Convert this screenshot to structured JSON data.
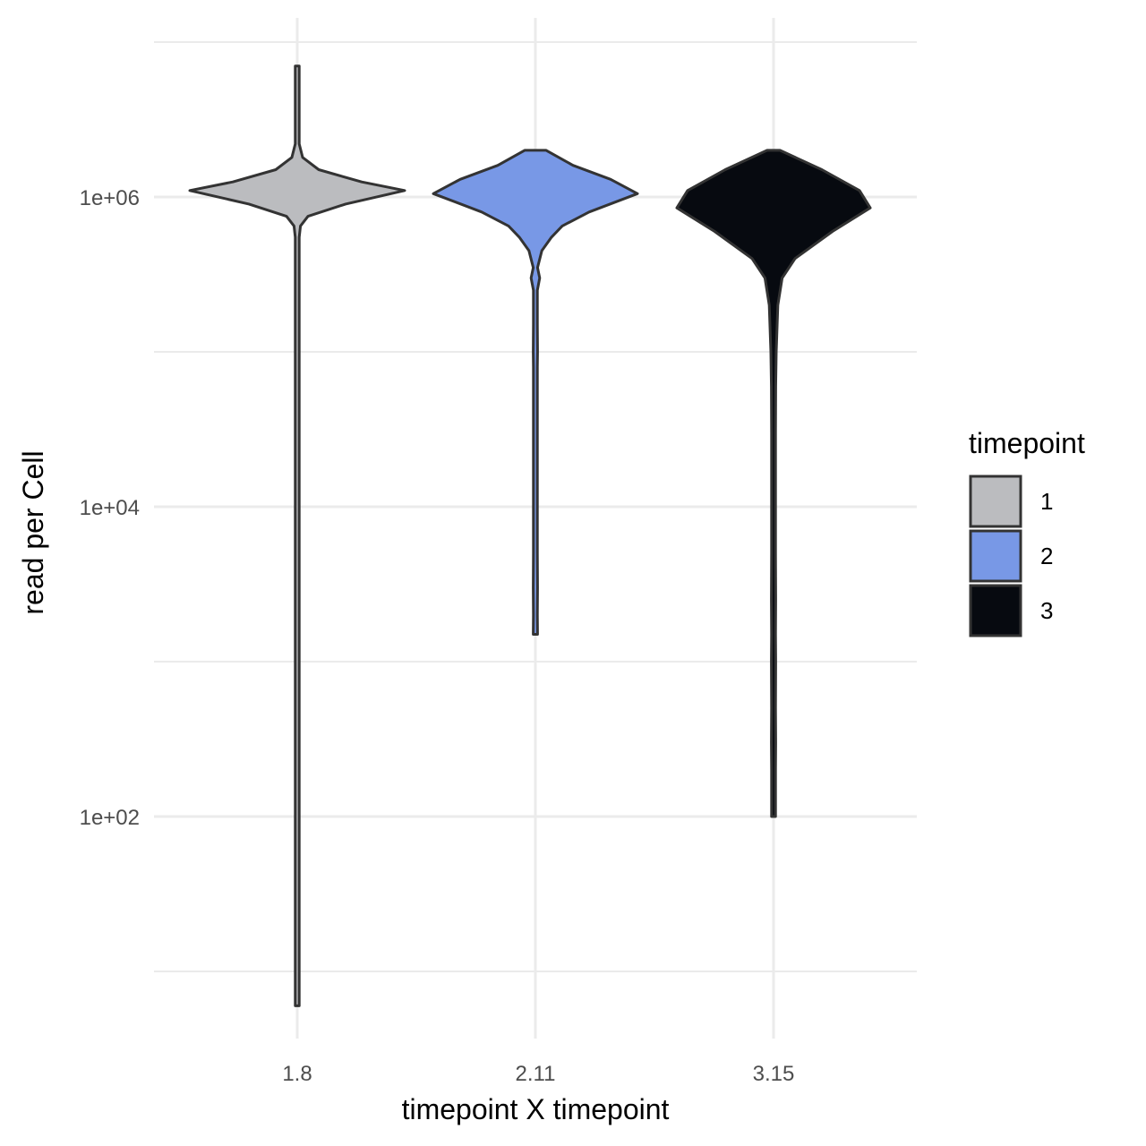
{
  "chart_data": {
    "type": "violin",
    "title": "",
    "xlabel": "timepoint X timepoint",
    "ylabel": "read per Cell",
    "y_scale": "log10",
    "ylim": [
      5,
      10000000
    ],
    "y_ticks": [
      {
        "value": 100,
        "label": "1e+02"
      },
      {
        "value": 10000,
        "label": "1e+04"
      },
      {
        "value": 1000000,
        "label": "1e+06"
      }
    ],
    "categories": [
      "1.8",
      "2.11",
      "3.15"
    ],
    "grid": true,
    "legend": {
      "title": "timepoint",
      "placement": "right",
      "entries": [
        {
          "label": "1",
          "color": "#bbbcbf"
        },
        {
          "label": "2",
          "color": "#7898e6"
        },
        {
          "label": "3",
          "color": "#070a10"
        }
      ]
    },
    "series": [
      {
        "category": "1.8",
        "fill": "#bbbcbf",
        "min": 6,
        "max": 7000000,
        "density": [
          [
            6,
            0.01
          ],
          [
            8,
            0.015
          ],
          [
            10,
            0.01
          ],
          [
            15,
            0.015
          ],
          [
            20,
            0.01
          ],
          [
            40,
            0.008
          ],
          [
            100,
            0.008
          ],
          [
            1000,
            0.008
          ],
          [
            10000,
            0.008
          ],
          [
            100000,
            0.009
          ],
          [
            400000,
            0.015
          ],
          [
            550000,
            0.012
          ],
          [
            650000,
            0.03
          ],
          [
            750000,
            0.1
          ],
          [
            900000,
            0.45
          ],
          [
            1100000,
            1.0
          ],
          [
            1250000,
            0.6
          ],
          [
            1500000,
            0.2
          ],
          [
            1800000,
            0.05
          ],
          [
            2200000,
            0.012
          ],
          [
            3000000,
            0.01
          ],
          [
            7000000,
            0.012
          ]
        ]
      },
      {
        "category": "2.11",
        "fill": "#7898e6",
        "min": 1500,
        "max": 2000000,
        "density": [
          [
            1500,
            0.02
          ],
          [
            2000,
            0.015
          ],
          [
            3000,
            0.02
          ],
          [
            5000,
            0.01
          ],
          [
            20000,
            0.01
          ],
          [
            80000,
            0.01
          ],
          [
            100000,
            0.02
          ],
          [
            150000,
            0.01
          ],
          [
            250000,
            0.015
          ],
          [
            300000,
            0.04
          ],
          [
            350000,
            0.02
          ],
          [
            450000,
            0.06
          ],
          [
            550000,
            0.15
          ],
          [
            650000,
            0.25
          ],
          [
            800000,
            0.5
          ],
          [
            1050000,
            0.95
          ],
          [
            1300000,
            0.7
          ],
          [
            1600000,
            0.35
          ],
          [
            2000000,
            0.1
          ]
        ]
      },
      {
        "category": "3.15",
        "fill": "#070a10",
        "min": 100,
        "max": 2000000,
        "density": [
          [
            100,
            0.005
          ],
          [
            200,
            0.01
          ],
          [
            300,
            0.02
          ],
          [
            500,
            0.01
          ],
          [
            1000,
            0.02
          ],
          [
            1500,
            0.01
          ],
          [
            2500,
            0.02
          ],
          [
            5000,
            0.012
          ],
          [
            10000,
            0.01
          ],
          [
            30000,
            0.015
          ],
          [
            60000,
            0.02
          ],
          [
            100000,
            0.025
          ],
          [
            200000,
            0.04
          ],
          [
            300000,
            0.08
          ],
          [
            400000,
            0.2
          ],
          [
            600000,
            0.55
          ],
          [
            850000,
            0.9
          ],
          [
            1100000,
            0.8
          ],
          [
            1500000,
            0.45
          ],
          [
            2000000,
            0.06
          ]
        ]
      }
    ]
  }
}
